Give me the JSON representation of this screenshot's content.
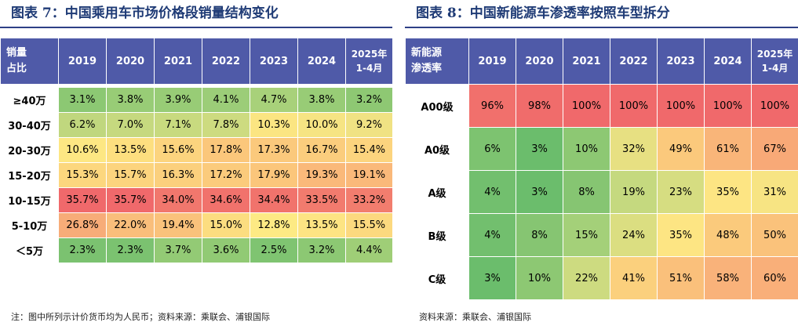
{
  "left": {
    "title_prefix": "图表",
    "title_num": "7",
    "title_sep": "：",
    "title_text": "中国乘用车市场价格段销量结构变化",
    "corner": [
      "销量",
      "占比"
    ],
    "years": [
      "2019",
      "2020",
      "2021",
      "2022",
      "2023",
      "2024"
    ],
    "last_col": [
      "2025年",
      "1-4月"
    ],
    "rows": [
      {
        "label": "≥40万",
        "values": [
          "3.1%",
          "3.8%",
          "3.9%",
          "4.1%",
          "4.7%",
          "3.8%",
          "3.2%"
        ]
      },
      {
        "label": "30-40万",
        "values": [
          "6.2%",
          "7.0%",
          "7.1%",
          "7.8%",
          "10.3%",
          "10.0%",
          "9.2%"
        ]
      },
      {
        "label": "20-30万",
        "values": [
          "10.6%",
          "13.5%",
          "15.6%",
          "17.8%",
          "17.3%",
          "16.7%",
          "15.4%"
        ]
      },
      {
        "label": "15-20万",
        "values": [
          "15.3%",
          "15.7%",
          "16.3%",
          "17.2%",
          "17.9%",
          "19.3%",
          "19.1%"
        ]
      },
      {
        "label": "10-15万",
        "values": [
          "35.7%",
          "35.7%",
          "34.0%",
          "34.6%",
          "34.4%",
          "33.5%",
          "33.2%"
        ]
      },
      {
        "label": "5-10万",
        "values": [
          "26.8%",
          "22.0%",
          "19.4%",
          "15.0%",
          "12.8%",
          "13.5%",
          "15.5%"
        ]
      },
      {
        "label": "＜5万",
        "values": [
          "2.3%",
          "2.3%",
          "3.7%",
          "3.6%",
          "2.5%",
          "3.2%",
          "4.4%"
        ]
      }
    ],
    "colors": [
      [
        "#8cc873",
        "#98cc76",
        "#98cc76",
        "#9ccd78",
        "#a8d17a",
        "#98cc76",
        "#8ec873"
      ],
      [
        "#c0d77e",
        "#c6d97f",
        "#c8da7f",
        "#cddb80",
        "#fbe582",
        "#f6e483",
        "#f0e283"
      ],
      [
        "#fde783",
        "#fddf7f",
        "#fcd47e",
        "#fbc77b",
        "#fbc97c",
        "#fbcd7d",
        "#fcd47e"
      ],
      [
        "#fcd77e",
        "#fcd47e",
        "#fbd07d",
        "#fbcb7c",
        "#fbc67b",
        "#fab97a",
        "#fab97a"
      ],
      [
        "#f0696b",
        "#f0696b",
        "#f1776d",
        "#f1726c",
        "#f1736c",
        "#f27b6e",
        "#f27d6e"
      ],
      [
        "#f7ac78",
        "#f9be7b",
        "#fac27b",
        "#fcdd80",
        "#fdea84",
        "#fde483",
        "#fcd97f"
      ],
      [
        "#7bc270",
        "#7bc270",
        "#93ca75",
        "#91ca74",
        "#7fc471",
        "#8cc873",
        "#9fce77"
      ]
    ],
    "note": "注：图中所列示计价货币均为人民币；资料来源：乘联会、浦银国际"
  },
  "right": {
    "title_prefix": "图表",
    "title_num": "8",
    "title_sep": "：",
    "title_text": "中国新能源车渗透率按照车型拆分",
    "corner": [
      "新能源",
      "渗透率"
    ],
    "years": [
      "2019",
      "2020",
      "2021",
      "2022",
      "2023",
      "2024"
    ],
    "last_col": [
      "2025年",
      "1-4月"
    ],
    "rows": [
      {
        "label": "A00级",
        "values": [
          "96%",
          "98%",
          "100%",
          "100%",
          "100%",
          "100%",
          "100%"
        ]
      },
      {
        "label": "A0级",
        "values": [
          "6%",
          "3%",
          "10%",
          "32%",
          "49%",
          "61%",
          "67%"
        ]
      },
      {
        "label": "A级",
        "values": [
          "4%",
          "3%",
          "8%",
          "19%",
          "23%",
          "35%",
          "31%"
        ]
      },
      {
        "label": "B级",
        "values": [
          "4%",
          "8%",
          "15%",
          "24%",
          "35%",
          "48%",
          "50%"
        ]
      },
      {
        "label": "C级",
        "values": [
          "3%",
          "10%",
          "22%",
          "41%",
          "51%",
          "58%",
          "60%"
        ]
      }
    ],
    "colors": [
      [
        "#f1706c",
        "#f06c6b",
        "#f0696b",
        "#f0696b",
        "#f0696b",
        "#f0696b",
        "#f0696b"
      ],
      [
        "#7dc370",
        "#6bbd6c",
        "#8dc873",
        "#e7e082",
        "#fbc97c",
        "#f9b579",
        "#f8a977"
      ],
      [
        "#72bf6e",
        "#6bbd6c",
        "#86c572",
        "#c5d97f",
        "#d6dd81",
        "#fde583",
        "#f7e483"
      ],
      [
        "#72bf6e",
        "#86c572",
        "#a4d079",
        "#dbde81",
        "#fde583",
        "#fbca7c",
        "#fac27b"
      ],
      [
        "#6bbd6c",
        "#8dc873",
        "#cddb80",
        "#fbd07d",
        "#fac07b",
        "#f9b27a",
        "#f9af79"
      ]
    ],
    "note": "资料来源：乘联会、浦银国际"
  }
}
